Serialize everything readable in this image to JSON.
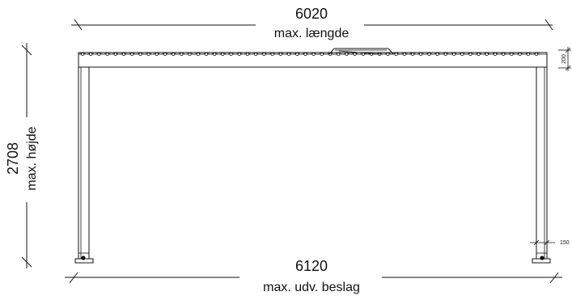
{
  "dimensions": {
    "top_length": {
      "value": "6020",
      "label": "max. længde"
    },
    "bottom_length": {
      "value": "6120",
      "label": "max. udv. beslag"
    },
    "height": {
      "value": "2708",
      "label": "max. højde"
    },
    "beam_height": {
      "value": "200"
    },
    "post_width": {
      "value": "150"
    }
  },
  "colors": {
    "line": "#111111",
    "background": "#ffffff"
  }
}
